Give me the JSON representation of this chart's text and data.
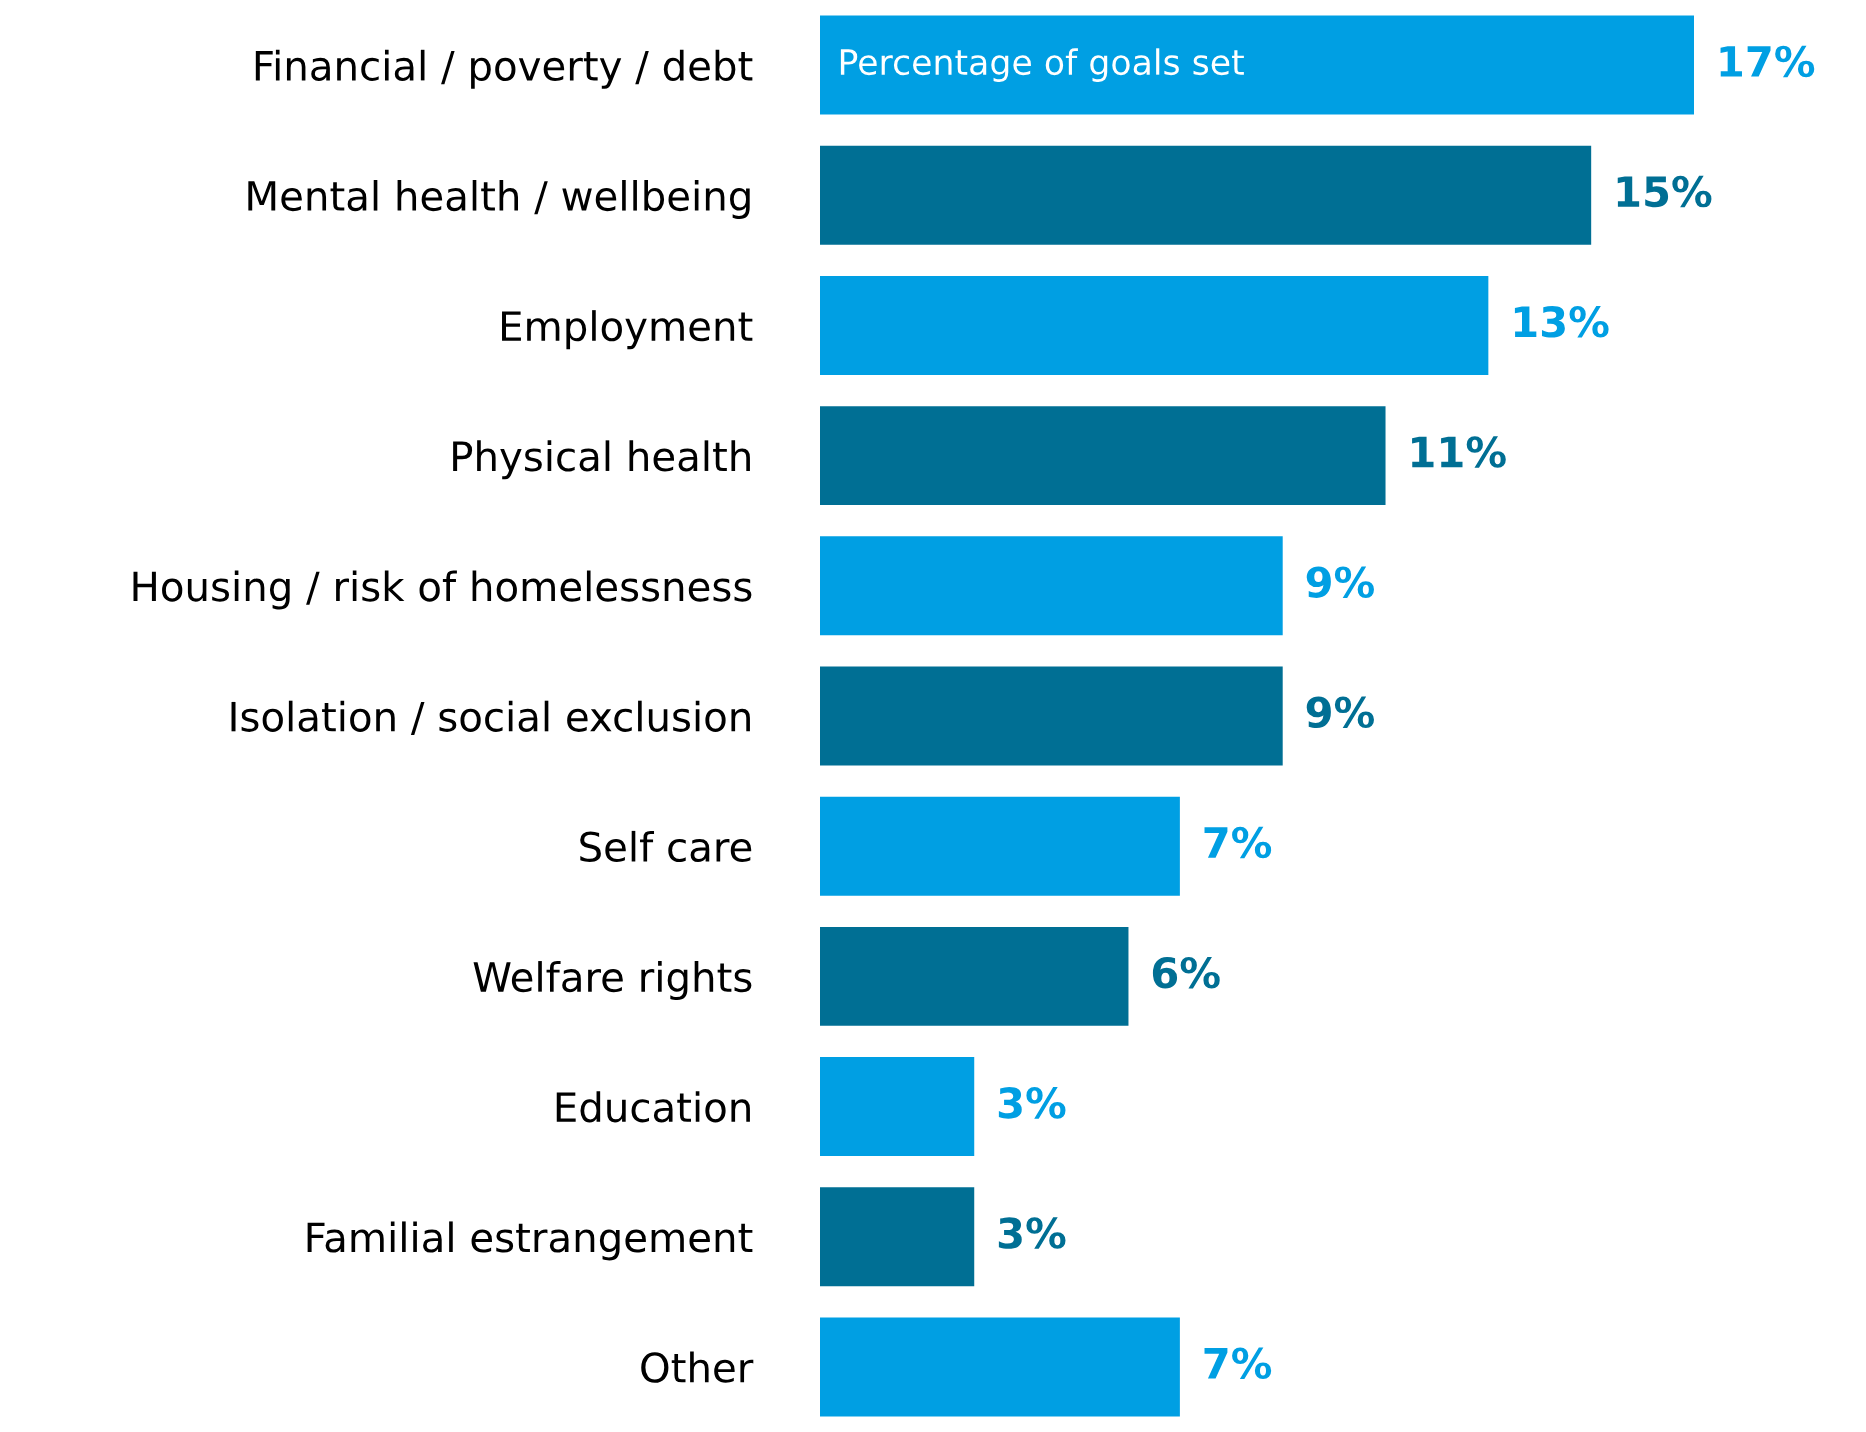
{
  "chart_data": {
    "type": "bar",
    "orientation": "horizontal",
    "categories": [
      "Financial / poverty / debt",
      "Mental health / wellbeing",
      "Employment",
      "Physical health",
      "Housing / risk of homelessness",
      "Isolation / social exclusion",
      "Self care",
      "Welfare rights",
      "Education",
      "Familial estrangement",
      "Other"
    ],
    "values": [
      17,
      15,
      13,
      11,
      9,
      9,
      7,
      6,
      3,
      3,
      7
    ],
    "colors": [
      "#009fe3",
      "#006f94",
      "#009fe3",
      "#006f94",
      "#009fe3",
      "#006f94",
      "#009fe3",
      "#006f94",
      "#009fe3",
      "#006f94",
      "#009fe3"
    ],
    "value_labels": [
      "17%",
      "15%",
      "13%",
      "11%",
      "9%",
      "9%",
      "7%",
      "6%",
      "3%",
      "3%",
      "7%"
    ],
    "annotations": [
      "Percentage of goals set"
    ],
    "grid": false,
    "legend": false
  }
}
